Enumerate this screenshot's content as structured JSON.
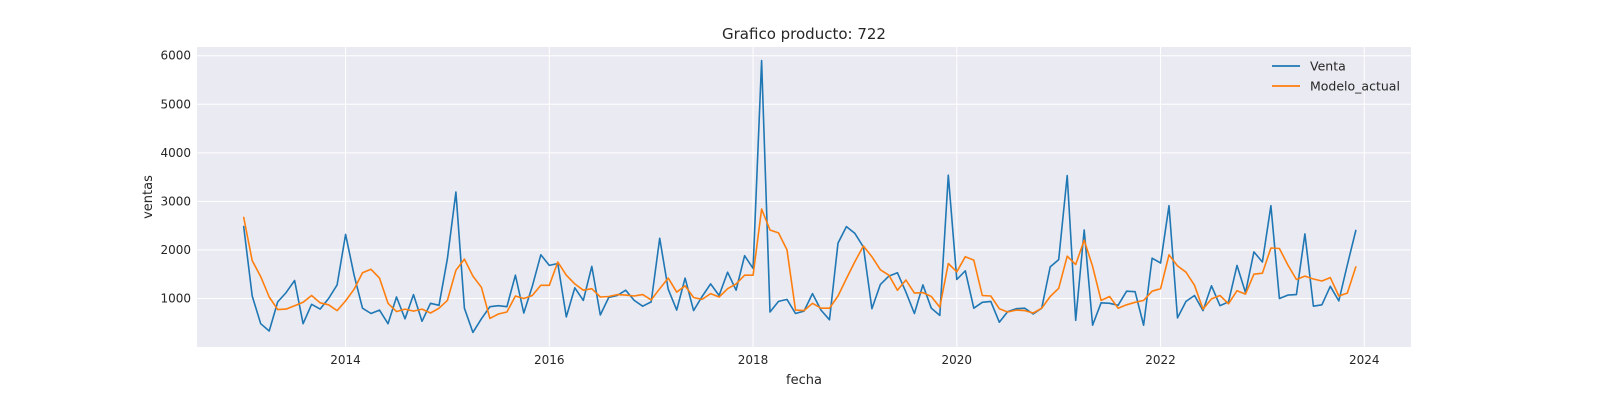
{
  "chart_data": {
    "type": "line",
    "title": "Grafico producto: 722",
    "xlabel": "fecha",
    "ylabel": "ventas",
    "x_start": "2013-01",
    "x_tick_labels": [
      "2014",
      "2016",
      "2018",
      "2020",
      "2022",
      "2024"
    ],
    "y_tick_labels": [
      "1000",
      "2000",
      "3000",
      "4000",
      "5000",
      "6000"
    ],
    "x_ticks": [
      "2014-01",
      "2016-01",
      "2018-01",
      "2020-01",
      "2022-01",
      "2024-01"
    ],
    "y_ticks": [
      1000,
      2000,
      3000,
      4000,
      5000,
      6000
    ],
    "xlim": [
      "2012-07",
      "2024-06"
    ],
    "ylim": [
      0,
      6180
    ],
    "grid": true,
    "legend_position": "top-right",
    "colors": {
      "Venta": "#1f77b4",
      "Modelo_actual": "#ff7f0e",
      "background": "#eaeaf2"
    },
    "series": [
      {
        "name": "Venta",
        "values": [
          2480,
          1050,
          480,
          330,
          930,
          1120,
          1370,
          480,
          880,
          780,
          1000,
          1280,
          2320,
          1480,
          800,
          690,
          760,
          480,
          1030,
          580,
          1080,
          530,
          900,
          860,
          1820,
          3190,
          800,
          300,
          580,
          830,
          850,
          830,
          1480,
          700,
          1250,
          1900,
          1680,
          1720,
          620,
          1220,
          960,
          1660,
          660,
          1020,
          1060,
          1170,
          960,
          840,
          930,
          2240,
          1190,
          760,
          1420,
          750,
          1040,
          1300,
          1060,
          1540,
          1170,
          1880,
          1620,
          5900,
          720,
          940,
          980,
          690,
          740,
          1100,
          760,
          560,
          2140,
          2480,
          2340,
          2060,
          790,
          1290,
          1460,
          1530,
          1130,
          690,
          1280,
          800,
          650,
          3540,
          1390,
          1570,
          800,
          920,
          940,
          510,
          730,
          790,
          800,
          680,
          800,
          1650,
          1800,
          3530,
          550,
          2410,
          450,
          910,
          900,
          860,
          1150,
          1140,
          450,
          1830,
          1730,
          2910,
          600,
          940,
          1060,
          750,
          1260,
          850,
          930,
          1680,
          1120,
          1960,
          1750,
          2910,
          1000,
          1070,
          1080,
          2330,
          840,
          870,
          1250,
          950,
          1690,
          2400
        ]
      },
      {
        "name": "Modelo_actual",
        "values": [
          2670,
          1780,
          1450,
          1030,
          770,
          780,
          850,
          920,
          1060,
          910,
          870,
          750,
          950,
          1190,
          1530,
          1600,
          1420,
          900,
          730,
          780,
          740,
          780,
          700,
          800,
          960,
          1580,
          1810,
          1460,
          1230,
          590,
          680,
          720,
          1050,
          1000,
          1060,
          1270,
          1270,
          1750,
          1480,
          1300,
          1170,
          1200,
          1030,
          1040,
          1080,
          1070,
          1050,
          1080,
          970,
          1200,
          1420,
          1130,
          1260,
          1020,
          980,
          1100,
          1030,
          1200,
          1300,
          1480,
          1480,
          2840,
          2410,
          2350,
          2000,
          760,
          750,
          900,
          800,
          800,
          1050,
          1410,
          1760,
          2080,
          1860,
          1590,
          1480,
          1170,
          1380,
          1110,
          1120,
          1040,
          820,
          1720,
          1550,
          1860,
          1790,
          1060,
          1050,
          790,
          720,
          760,
          750,
          700,
          800,
          1040,
          1210,
          1870,
          1700,
          2200,
          1660,
          960,
          1040,
          800,
          870,
          920,
          960,
          1150,
          1200,
          1900,
          1670,
          1540,
          1270,
          780,
          990,
          1060,
          890,
          1160,
          1090,
          1500,
          1520,
          2040,
          2030,
          1690,
          1390,
          1460,
          1400,
          1360,
          1430,
          1050,
          1110,
          1650
        ]
      }
    ]
  }
}
